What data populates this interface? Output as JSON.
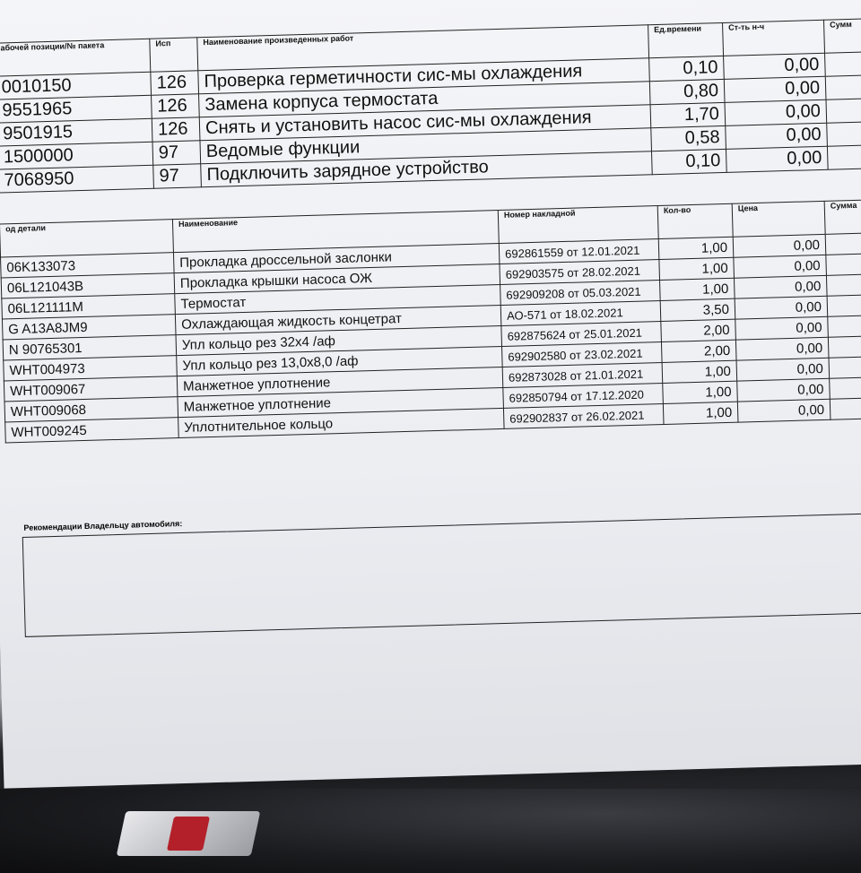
{
  "works": {
    "headers": [
      "абочей позиции/№ пакета",
      "Исп",
      "Наименование произведенных работ",
      "Ед.времени",
      "Ст-ть н-ч",
      "Сумм"
    ],
    "rows": [
      [
        "0010150",
        "126",
        "Проверка герметичности сис-мы охлаждения",
        "0,10",
        "0,00"
      ],
      [
        "9551965",
        "126",
        "Замена корпуса термостата",
        "0,80",
        "0,00"
      ],
      [
        "9501915",
        "126",
        "Снять и установить насос сис-мы охлаждения",
        "1,70",
        "0,00"
      ],
      [
        "1500000",
        "97",
        "Ведомые функции",
        "0,58",
        "0,00"
      ],
      [
        "7068950",
        "97",
        "Подключить зарядное устройство",
        "0,10",
        "0,00"
      ]
    ]
  },
  "parts": {
    "headers": [
      "од детали",
      "Наименование",
      "Номер накладной",
      "Кол-во",
      "Цена",
      "Сумма"
    ],
    "rows": [
      [
        "06K133073",
        "Прокладка дроссельной заслонки",
        "692861559 от 12.01.2021",
        "1,00",
        "0,00"
      ],
      [
        "06L121043B",
        "Прокладка крышки насоса ОЖ",
        "692903575 от 28.02.2021",
        "1,00",
        "0,00"
      ],
      [
        "06L121111M",
        "Термостат",
        "692909208 от 05.03.2021",
        "1,00",
        "0,00"
      ],
      [
        "G  A13A8JM9",
        "Охлаждающая жидкость концетрат",
        "АО-571 от 18.02.2021",
        "3,50",
        "0,00"
      ],
      [
        "N  90765301",
        "Упл кольцо рез 32х4 /аф",
        "692875624 от 25.01.2021",
        "2,00",
        "0,00"
      ],
      [
        "WHT004973",
        "Упл кольцо рез 13,0х8,0 /аф",
        "692902580 от 23.02.2021",
        "2,00",
        "0,00"
      ],
      [
        "WHT009067",
        "Манжетное уплотнение",
        "692873028 от 21.01.2021",
        "1,00",
        "0,00"
      ],
      [
        "WHT009068",
        "Манжетное уплотнение",
        "692850794 от 17.12.2020",
        "1,00",
        "0,00"
      ],
      [
        "WHT009245",
        "Уплотнительное кольцо",
        "692902837 от 26.02.2021",
        "1,00",
        "0,00"
      ]
    ]
  },
  "recommendations": {
    "label": "Рекомендации Владельцу автомобиля:"
  }
}
